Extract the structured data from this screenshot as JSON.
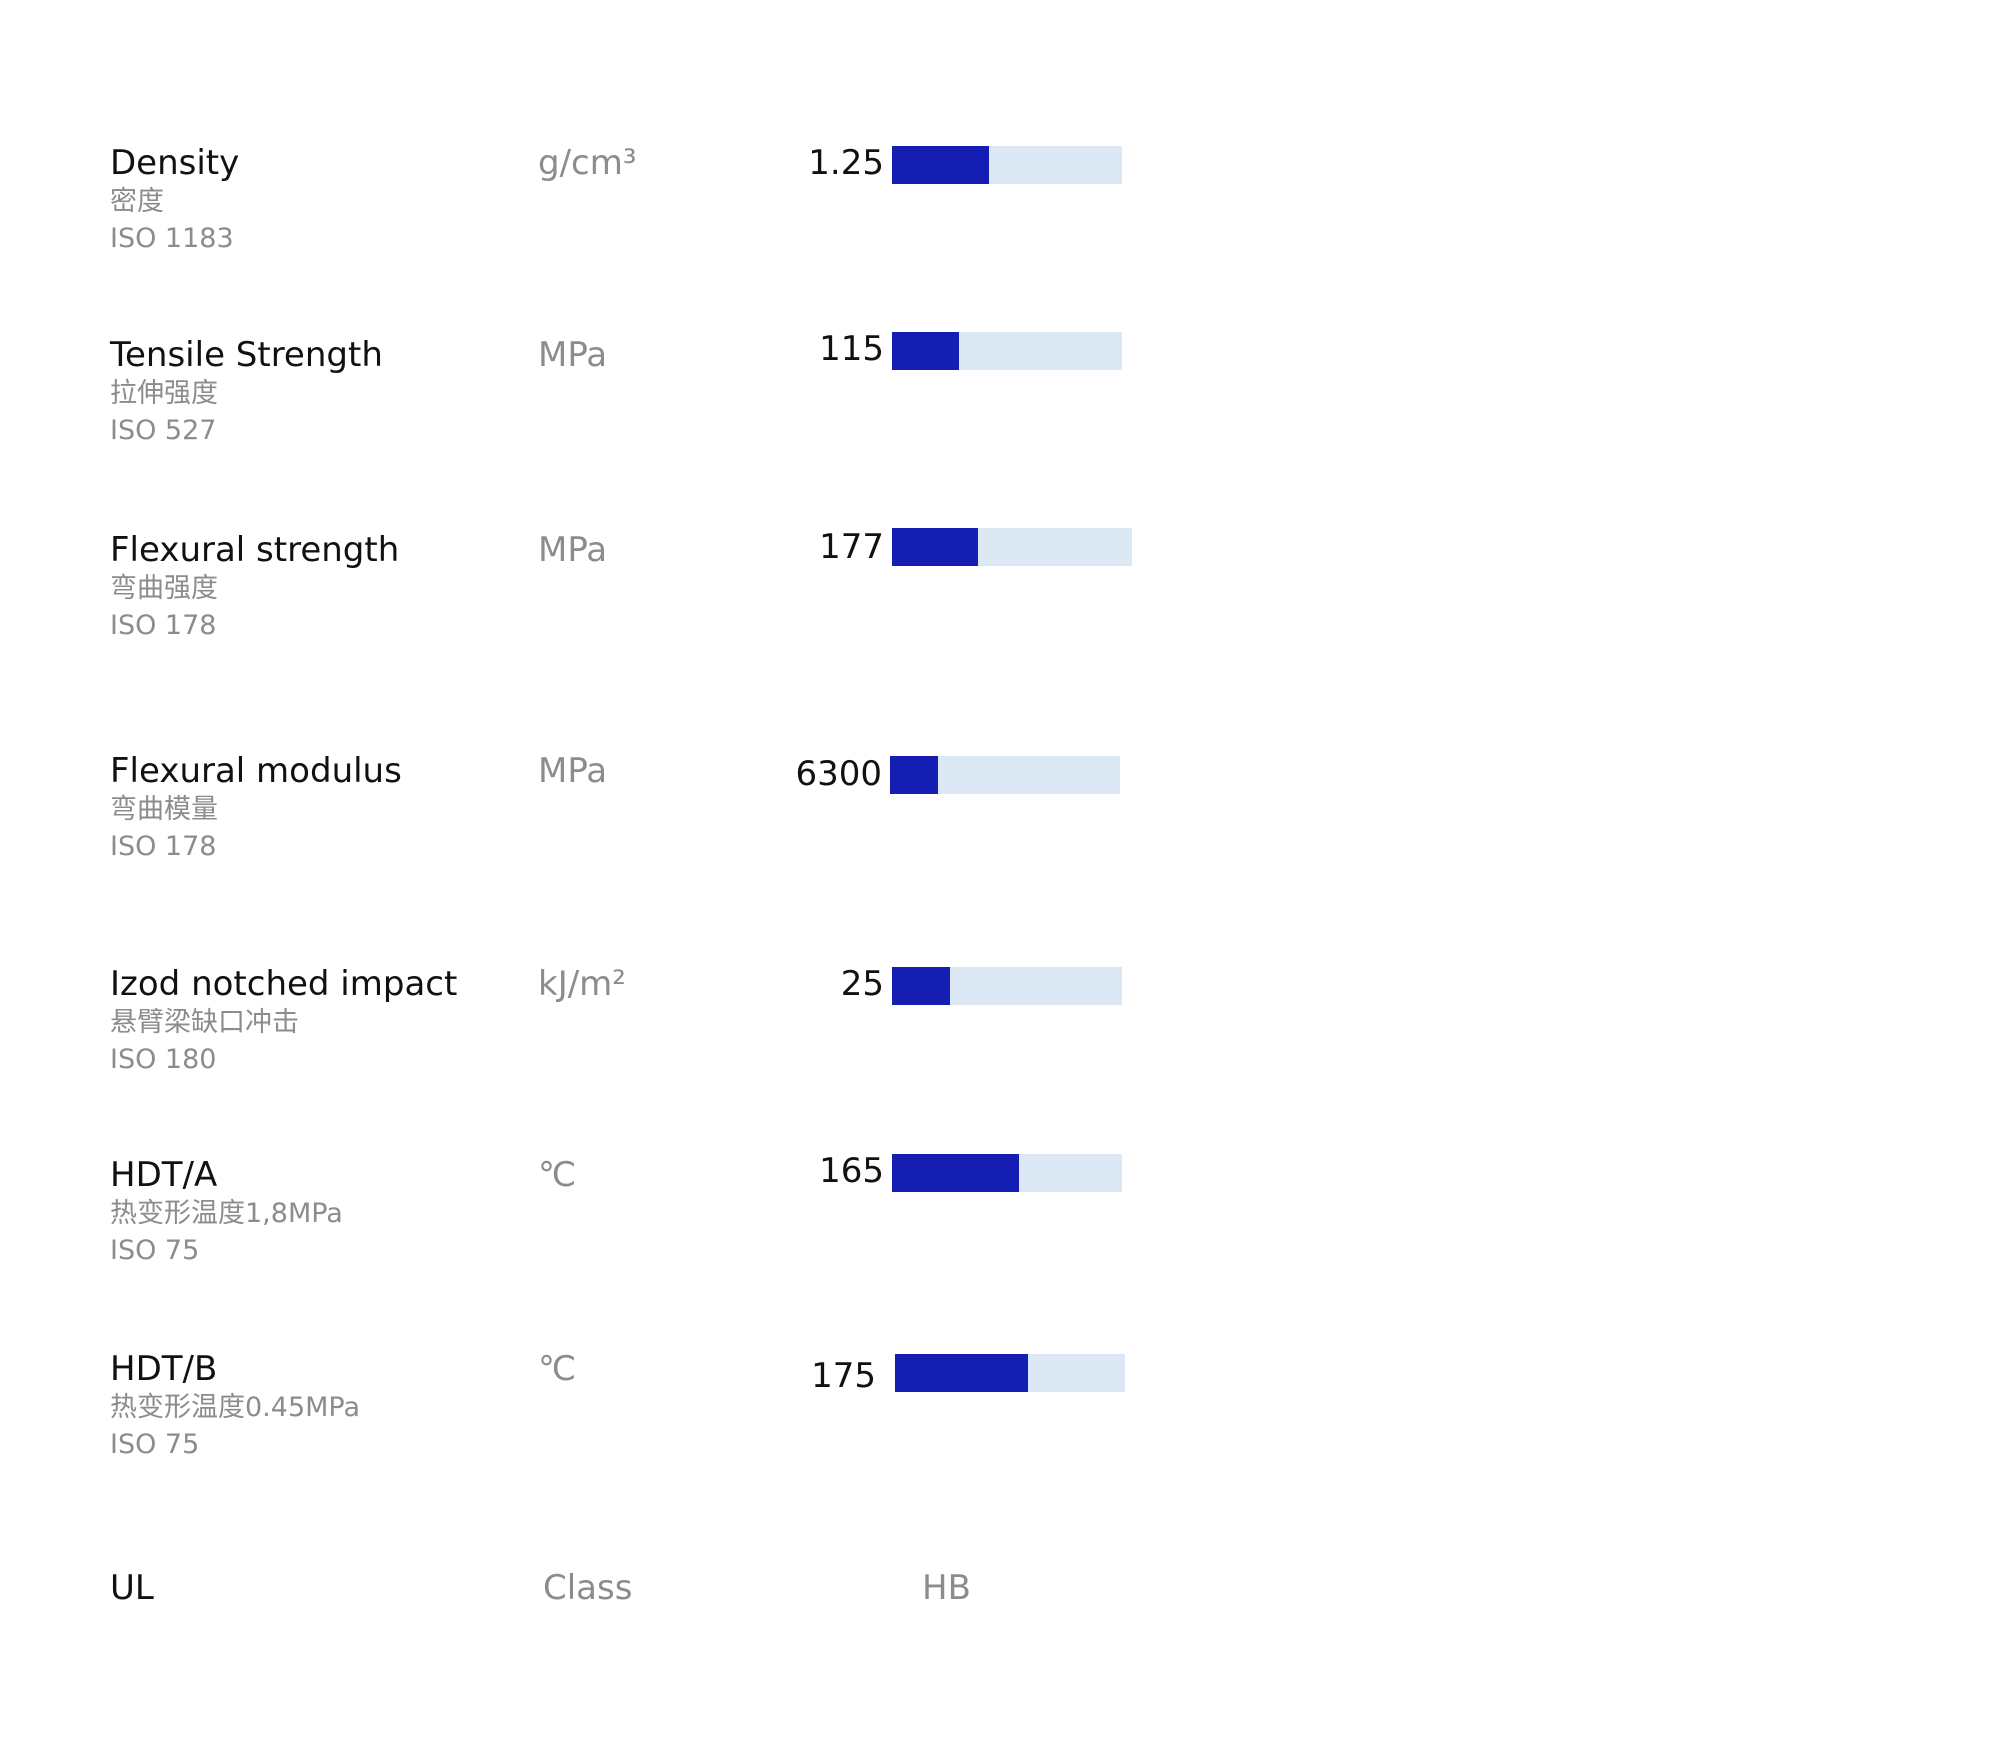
{
  "properties": [
    {
      "name": "Density",
      "cn": "密度",
      "standard": "ISO 1183",
      "unit": "g/cm³",
      "value": "1.25",
      "level": 0.42
    },
    {
      "name": "Tensile Strength",
      "cn": "拉伸强度",
      "standard": "ISO 527",
      "unit": "MPa",
      "value": "115",
      "level": 0.29
    },
    {
      "name": "Flexural strength",
      "cn": "弯曲强度",
      "standard": "ISO 178",
      "unit": "MPa",
      "value": "177",
      "level": 0.36
    },
    {
      "name": "Flexural modulus",
      "cn": "弯曲模量",
      "standard": "ISO 178",
      "unit": "MPa",
      "value": "6300",
      "level": 0.21
    },
    {
      "name": "Izod notched impact",
      "cn": "悬臂梁缺口冲击",
      "standard": "ISO 180",
      "unit": "kJ/m²",
      "value": "25",
      "level": 0.25
    },
    {
      "name": "HDT/A",
      "cn": "热变形温度1,8MPa",
      "standard": "ISO 75",
      "unit": "℃",
      "value": "165",
      "level": 0.55
    },
    {
      "name": "HDT/B",
      "cn": "热变形温度0.45MPa",
      "standard": "ISO 75",
      "unit": "℃",
      "value": "175",
      "level": 0.58
    }
  ],
  "ul": {
    "name": "UL",
    "unit": "Class",
    "value": "HB"
  },
  "colors": {
    "bar_fill": "#151eb3",
    "bar_track": "#dde8f5"
  }
}
